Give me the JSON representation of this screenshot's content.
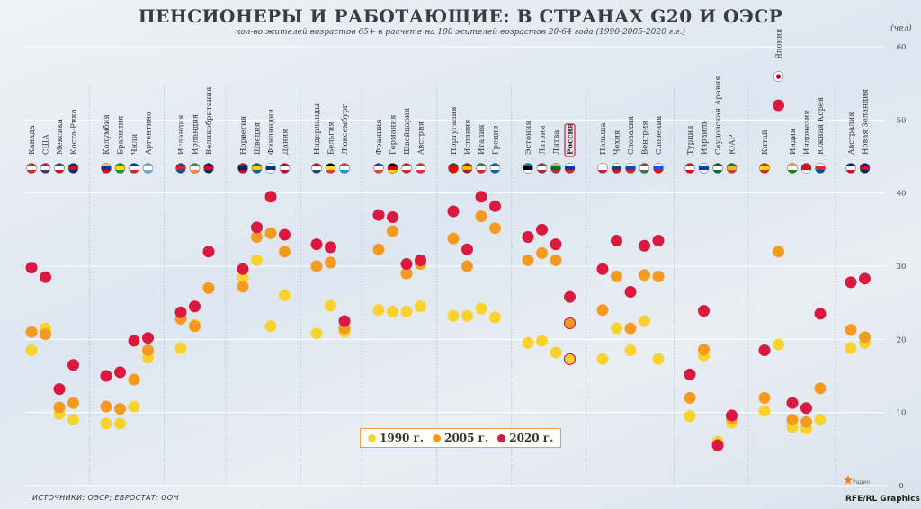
{
  "header": {
    "title": "ПЕНСИОНЕРЫ И РАБОТАЮЩИЕ: В СТРАНАХ G20 И ОЭСР",
    "subtitle": "кол-во жителей возрастов 65+ в расчете на 100 жителей возрастов 20-64 года (1990-2005-2020 г.г.)",
    "unit": "(чел)"
  },
  "footer": {
    "source": "ИСТОЧНИКИ: ОЭСР; ЕВРОСТАТ; ООН",
    "brand": "RFE/RL Graphics",
    "logo_text": "Радио"
  },
  "colors": {
    "y1990": "#fad22e",
    "y2005": "#f59a21",
    "y2020": "#d91940",
    "gridline": "#ffffff",
    "highlight": "#d91940"
  },
  "legend": [
    {
      "label": "1990 г.",
      "color": "#fad22e"
    },
    {
      "label": "2005 г.",
      "color": "#f59a21"
    },
    {
      "label": "2020 г.",
      "color": "#d91940"
    }
  ],
  "chart_data": {
    "type": "scatter",
    "title": "ПЕНСИОНЕРЫ И РАБОТАЮЩИЕ: В СТРАНАХ G20 И ОЭСР",
    "ylabel": "(чел)",
    "ylim": [
      0,
      60
    ],
    "yticks": [
      0,
      10,
      20,
      30,
      40,
      50,
      60
    ],
    "grid": true,
    "legend_position": "bottom-center",
    "series_names": [
      "1990 г.",
      "2005 г.",
      "2020 г."
    ],
    "highlighted": "Россия",
    "groups": [
      {
        "countries": [
          {
            "name": "Канада",
            "v1990": 18.5,
            "v2005": 21.0,
            "v2020": 29.8,
            "flag": [
              "#d52b1e",
              "#ffffff",
              "#d52b1e"
            ]
          },
          {
            "name": "США",
            "v1990": 21.5,
            "v2005": 20.7,
            "v2020": 28.5,
            "flag": [
              "#b22234",
              "#ffffff",
              "#3c3b6e"
            ]
          },
          {
            "name": "Мексика",
            "v1990": 9.8,
            "v2005": 10.7,
            "v2020": 13.2,
            "flag": [
              "#006847",
              "#ffffff",
              "#ce1126"
            ]
          },
          {
            "name": "Коста-Рика",
            "v1990": 9.0,
            "v2005": 11.3,
            "v2020": 16.5,
            "flag": [
              "#002b7f",
              "#ce1126",
              "#002b7f"
            ]
          }
        ]
      },
      {
        "countries": [
          {
            "name": "Колумбия",
            "v1990": 8.5,
            "v2005": 10.8,
            "v2020": 15.0,
            "flag": [
              "#fcd116",
              "#003893",
              "#ce1126"
            ]
          },
          {
            "name": "Бразилия",
            "v1990": 8.5,
            "v2005": 10.5,
            "v2020": 15.5,
            "flag": [
              "#009c3b",
              "#ffdf00",
              "#009c3b"
            ]
          },
          {
            "name": "Чили",
            "v1990": 10.8,
            "v2005": 14.5,
            "v2020": 19.8,
            "flag": [
              "#0039a6",
              "#ffffff",
              "#d52b1e"
            ]
          },
          {
            "name": "Аргентина",
            "v1990": 17.5,
            "v2005": 18.5,
            "v2020": 20.2,
            "flag": [
              "#74acdf",
              "#ffffff",
              "#74acdf"
            ]
          }
        ]
      },
      {
        "countries": [
          {
            "name": "Исландия",
            "v1990": 18.8,
            "v2005": 22.8,
            "v2020": 23.7,
            "flag": [
              "#02529c",
              "#dc1e35",
              "#02529c"
            ]
          },
          {
            "name": "Ирландия",
            "v1990": 22.0,
            "v2005": 21.8,
            "v2020": 24.5,
            "flag": [
              "#169b62",
              "#ffffff",
              "#ff883e"
            ]
          },
          {
            "name": "Великобритания",
            "v1990": 27.0,
            "v2005": 27.0,
            "v2020": 32.0,
            "flag": [
              "#012169",
              "#c8102e",
              "#012169"
            ]
          }
        ]
      },
      {
        "countries": [
          {
            "name": "Норвегия",
            "v1990": 28.5,
            "v2005": 27.2,
            "v2020": 29.6,
            "flag": [
              "#ba0c2f",
              "#00205b",
              "#ba0c2f"
            ]
          },
          {
            "name": "Швеция",
            "v1990": 30.8,
            "v2005": 34.0,
            "v2020": 35.3,
            "flag": [
              "#006aa7",
              "#fecc00",
              "#006aa7"
            ]
          },
          {
            "name": "Финляндия",
            "v1990": 21.8,
            "v2005": 34.5,
            "v2020": 39.5,
            "flag": [
              "#ffffff",
              "#003580",
              "#ffffff"
            ]
          },
          {
            "name": "Дания",
            "v1990": 26.0,
            "v2005": 32.0,
            "v2020": 34.3,
            "flag": [
              "#c60c30",
              "#ffffff",
              "#c60c30"
            ]
          }
        ]
      },
      {
        "countries": [
          {
            "name": "Нидерланды",
            "v1990": 20.8,
            "v2005": 30.0,
            "v2020": 33.0,
            "flag": [
              "#ae1c28",
              "#ffffff",
              "#21468b"
            ]
          },
          {
            "name": "Бельгия",
            "v1990": 24.6,
            "v2005": 30.5,
            "v2020": 32.6,
            "flag": [
              "#000000",
              "#fdda24",
              "#ef3340"
            ]
          },
          {
            "name": "Люксембург",
            "v1990": 21.0,
            "v2005": 21.5,
            "v2020": 22.5,
            "flag": [
              "#ed2939",
              "#ffffff",
              "#00a1de"
            ]
          }
        ]
      },
      {
        "countries": [
          {
            "name": "Франция",
            "v1990": 24.0,
            "v2005": 32.3,
            "v2020": 37.0,
            "flag": [
              "#0055a4",
              "#ffffff",
              "#ef4135"
            ]
          },
          {
            "name": "Германия",
            "v1990": 23.8,
            "v2005": 34.8,
            "v2020": 36.7,
            "flag": [
              "#000000",
              "#dd0000",
              "#ffce00"
            ]
          },
          {
            "name": "Швейцария",
            "v1990": 23.8,
            "v2005": 29.0,
            "v2020": 30.3,
            "flag": [
              "#d52b1e",
              "#ffffff",
              "#d52b1e"
            ]
          },
          {
            "name": "Австрия",
            "v1990": 24.5,
            "v2005": 30.3,
            "v2020": 30.8,
            "flag": [
              "#ed2939",
              "#ffffff",
              "#ed2939"
            ]
          }
        ]
      },
      {
        "countries": [
          {
            "name": "Португалия",
            "v1990": 23.2,
            "v2005": 33.8,
            "v2020": 37.5,
            "flag": [
              "#006600",
              "#ff0000",
              "#ff0000"
            ]
          },
          {
            "name": "Испания",
            "v1990": 23.2,
            "v2005": 30.0,
            "v2020": 32.3,
            "flag": [
              "#aa151b",
              "#f1bf00",
              "#aa151b"
            ]
          },
          {
            "name": "Италия",
            "v1990": 24.2,
            "v2005": 36.8,
            "v2020": 39.5,
            "flag": [
              "#009246",
              "#ffffff",
              "#ce2b37"
            ]
          },
          {
            "name": "Греция",
            "v1990": 23.0,
            "v2005": 35.2,
            "v2020": 38.2,
            "flag": [
              "#0d5eaf",
              "#ffffff",
              "#0d5eaf"
            ]
          }
        ]
      },
      {
        "countries": [
          {
            "name": "Эстония",
            "v1990": 19.5,
            "v2005": 30.8,
            "v2020": 34.0,
            "flag": [
              "#0072ce",
              "#000000",
              "#ffffff"
            ]
          },
          {
            "name": "Латвия",
            "v1990": 19.8,
            "v2005": 31.8,
            "v2020": 35.0,
            "flag": [
              "#9e3039",
              "#ffffff",
              "#9e3039"
            ]
          },
          {
            "name": "Литва",
            "v1990": 18.2,
            "v2005": 30.8,
            "v2020": 33.0,
            "flag": [
              "#fdb913",
              "#006a44",
              "#c1272d"
            ]
          },
          {
            "name": "Россия",
            "v1990": 17.3,
            "v2005": 22.2,
            "v2020": 25.8,
            "flag": [
              "#ffffff",
              "#0039a6",
              "#d52b1e"
            ]
          }
        ]
      },
      {
        "countries": [
          {
            "name": "Польша",
            "v1990": 17.3,
            "v2005": 24.0,
            "v2020": 29.6,
            "flag": [
              "#ffffff",
              "#ffffff",
              "#dc143c"
            ]
          },
          {
            "name": "Чехия",
            "v1990": 21.5,
            "v2005": 28.6,
            "v2020": 33.5,
            "flag": [
              "#ffffff",
              "#11457e",
              "#d7141a"
            ]
          },
          {
            "name": "Словакия",
            "v1990": 18.5,
            "v2005": 21.5,
            "v2020": 26.5,
            "flag": [
              "#ffffff",
              "#0b4ea2",
              "#ee1c25"
            ]
          },
          {
            "name": "Венгрия",
            "v1990": 22.5,
            "v2005": 28.8,
            "v2020": 32.8,
            "flag": [
              "#ce2939",
              "#ffffff",
              "#477050"
            ]
          },
          {
            "name": "Словения",
            "v1990": 17.3,
            "v2005": 28.6,
            "v2020": 33.5,
            "flag": [
              "#ffffff",
              "#005ce6",
              "#ff0000"
            ]
          }
        ]
      },
      {
        "countries": [
          {
            "name": "Турция",
            "v1990": 9.5,
            "v2005": 12.0,
            "v2020": 15.2,
            "flag": [
              "#e30a17",
              "#ffffff",
              "#e30a17"
            ]
          },
          {
            "name": "Израиль",
            "v1990": 17.8,
            "v2005": 18.6,
            "v2020": 23.9,
            "flag": [
              "#ffffff",
              "#0038b8",
              "#ffffff"
            ]
          },
          {
            "name": "Саудовская Аравия",
            "v1990": 6.0,
            "v2005": 5.6,
            "v2020": 5.5,
            "flag": [
              "#006c35",
              "#ffffff",
              "#006c35"
            ]
          },
          {
            "name": "ЮАР",
            "v1990": 8.6,
            "v2005": 9.2,
            "v2020": 9.6,
            "flag": [
              "#007749",
              "#ffb81c",
              "#de3831"
            ]
          }
        ]
      },
      {
        "countries": [
          {
            "name": "Китай",
            "v1990": 10.2,
            "v2005": 12.0,
            "v2020": 18.5,
            "flag": [
              "#de2910",
              "#ffde00",
              "#de2910"
            ]
          },
          {
            "name": "Япония",
            "v1990": 19.3,
            "v2005": 32.0,
            "v2020": 52.0,
            "flag": [
              "#ffffff",
              "#bc002d",
              "#ffffff"
            ]
          },
          {
            "name": "Индия",
            "v1990": 8.0,
            "v2005": 9.0,
            "v2020": 11.3,
            "flag": [
              "#ff9933",
              "#ffffff",
              "#138808"
            ]
          },
          {
            "name": "Индонезия",
            "v1990": 7.8,
            "v2005": 8.7,
            "v2020": 10.6,
            "flag": [
              "#ce1126",
              "#ce1126",
              "#ffffff"
            ]
          },
          {
            "name": "Южная Корея",
            "v1990": 9.0,
            "v2005": 13.3,
            "v2020": 23.5,
            "flag": [
              "#ffffff",
              "#cd2e3a",
              "#0047a0"
            ]
          }
        ]
      },
      {
        "countries": [
          {
            "name": "Австралия",
            "v1990": 18.8,
            "v2005": 21.3,
            "v2020": 27.8,
            "flag": [
              "#012169",
              "#ffffff",
              "#e4002b"
            ]
          },
          {
            "name": "Новая Зеландия",
            "v1990": 19.5,
            "v2005": 20.3,
            "v2020": 28.3,
            "flag": [
              "#012169",
              "#c8102e",
              "#012169"
            ]
          }
        ]
      }
    ]
  }
}
